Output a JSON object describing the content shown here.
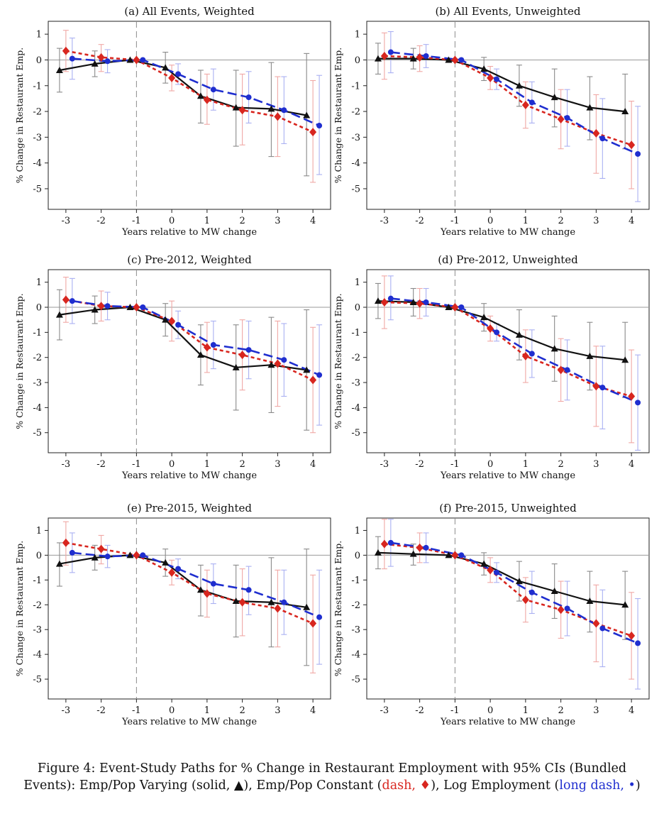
{
  "x_axis_label": "Years relative to MW change",
  "y_axis_label": "% Change in Restaurant Emp.",
  "caption": {
    "part1": "Figure 4: Event-Study Paths for % Change in Restaurant Employment with 95% CIs (Bundled Events): Emp/Pop Varying (solid, ",
    "tri": "▲",
    "part2": "), Emp/Pop Constant (",
    "red_text": "dash, ",
    "diamond": "♦",
    "part3": "), Log Employment (",
    "blue_text": "long dash, ",
    "dot": "•",
    "part4": ")"
  },
  "colors": {
    "solid": "#111111",
    "dash": "#d8261f",
    "longdash": "#1f2ecf",
    "ci_red": "#f0a8a5",
    "ci_blue": "#aab0f2",
    "ci_black": "#8a8a8a"
  },
  "chart_data": [
    {
      "type": "line",
      "title": "(a) All Events, Weighted",
      "x": [
        -3,
        -2,
        -1,
        0,
        1,
        2,
        3,
        4
      ],
      "xlabel": "Years relative to MW change",
      "ylabel": "% Change in Restaurant Emp.",
      "xlim": [
        -3.5,
        4.5
      ],
      "ylim": [
        -5.8,
        1.5
      ],
      "yticks": [
        1,
        0,
        -1,
        -2,
        -3,
        -4,
        -5
      ],
      "series": [
        {
          "style": "solid",
          "marker": "triangle",
          "values": [
            -0.4,
            -0.15,
            0,
            -0.3,
            -1.4,
            -1.85,
            -1.9,
            -2.15
          ],
          "ci_low": [
            -1.25,
            -0.65,
            0,
            -0.9,
            -2.45,
            -3.35,
            -3.75,
            -4.5
          ],
          "ci_high": [
            0.45,
            0.35,
            0,
            0.3,
            -0.4,
            -0.4,
            -0.1,
            0.25
          ]
        },
        {
          "style": "dash",
          "marker": "diamond",
          "values": [
            0.35,
            0.1,
            0,
            -0.7,
            -1.55,
            -1.95,
            -2.2,
            -2.8
          ],
          "ci_low": [
            -0.45,
            -0.45,
            0,
            -1.2,
            -2.5,
            -3.3,
            -3.75,
            -4.75
          ],
          "ci_high": [
            1.15,
            0.6,
            0,
            -0.2,
            -0.55,
            -0.55,
            -0.65,
            -0.8
          ]
        },
        {
          "style": "longdash",
          "marker": "circle",
          "values": [
            0.05,
            -0.05,
            0,
            -0.55,
            -1.15,
            -1.45,
            -1.95,
            -2.55
          ],
          "ci_low": [
            -0.75,
            -0.5,
            0,
            -0.95,
            -1.95,
            -2.45,
            -3.25,
            -4.45
          ],
          "ci_high": [
            0.85,
            0.4,
            0,
            -0.15,
            -0.35,
            -0.45,
            -0.65,
            -0.6
          ]
        }
      ]
    },
    {
      "type": "line",
      "title": "(b) All Events, Unweighted",
      "x": [
        -3,
        -2,
        -1,
        0,
        1,
        2,
        3,
        4
      ],
      "xlabel": "Years relative to MW change",
      "ylabel": "% Change in Restaurant Emp.",
      "xlim": [
        -3.5,
        4.5
      ],
      "ylim": [
        -5.8,
        1.5
      ],
      "yticks": [
        1,
        0,
        -1,
        -2,
        -3,
        -4,
        -5
      ],
      "series": [
        {
          "style": "solid",
          "marker": "triangle",
          "values": [
            0.05,
            0.05,
            0,
            -0.35,
            -1.0,
            -1.45,
            -1.85,
            -2.0
          ],
          "ci_low": [
            -0.55,
            -0.35,
            0,
            -0.8,
            -1.8,
            -2.6,
            -3.1,
            -3.45
          ],
          "ci_high": [
            0.65,
            0.45,
            0,
            0.1,
            -0.2,
            -0.35,
            -0.65,
            -0.55
          ]
        },
        {
          "style": "dash",
          "marker": "diamond",
          "values": [
            0.15,
            0.1,
            0,
            -0.7,
            -1.75,
            -2.3,
            -2.85,
            -3.3
          ],
          "ci_low": [
            -0.75,
            -0.45,
            0,
            -1.15,
            -2.65,
            -3.45,
            -4.4,
            -5.0
          ],
          "ci_high": [
            1.05,
            0.55,
            0,
            -0.25,
            -0.85,
            -1.15,
            -1.35,
            -1.6
          ]
        },
        {
          "style": "longdash",
          "marker": "circle",
          "values": [
            0.3,
            0.15,
            0,
            -0.75,
            -1.65,
            -2.25,
            -3.05,
            -3.65
          ],
          "ci_low": [
            -0.5,
            -0.3,
            0,
            -1.15,
            -2.45,
            -3.35,
            -4.6,
            -5.5
          ],
          "ci_high": [
            1.1,
            0.6,
            0,
            -0.35,
            -0.85,
            -1.15,
            -1.5,
            -1.8
          ]
        }
      ]
    },
    {
      "type": "line",
      "title": "(c) Pre-2012, Weighted",
      "x": [
        -3,
        -2,
        -1,
        0,
        1,
        2,
        3,
        4
      ],
      "xlabel": "Years relative to MW change",
      "ylabel": "% Change in Restaurant Emp.",
      "xlim": [
        -3.5,
        4.5
      ],
      "ylim": [
        -5.8,
        1.5
      ],
      "yticks": [
        1,
        0,
        -1,
        -2,
        -3,
        -4,
        -5
      ],
      "series": [
        {
          "style": "solid",
          "marker": "triangle",
          "values": [
            -0.3,
            -0.1,
            0,
            -0.5,
            -1.9,
            -2.4,
            -2.3,
            -2.5
          ],
          "ci_low": [
            -1.3,
            -0.65,
            0,
            -1.15,
            -3.1,
            -4.1,
            -4.2,
            -4.9
          ],
          "ci_high": [
            0.7,
            0.45,
            0,
            0.15,
            -0.7,
            -0.7,
            -0.4,
            -0.1
          ]
        },
        {
          "style": "dash",
          "marker": "diamond",
          "values": [
            0.3,
            0.05,
            0,
            -0.55,
            -1.6,
            -1.9,
            -2.25,
            -2.9
          ],
          "ci_low": [
            -0.6,
            -0.55,
            0,
            -1.35,
            -2.6,
            -3.3,
            -3.95,
            -5.0
          ],
          "ci_high": [
            1.2,
            0.65,
            0,
            0.25,
            -0.6,
            -0.5,
            -0.55,
            -0.8
          ]
        },
        {
          "style": "longdash",
          "marker": "circle",
          "values": [
            0.25,
            0.05,
            0,
            -0.7,
            -1.5,
            -1.7,
            -2.1,
            -2.7
          ],
          "ci_low": [
            -0.65,
            -0.5,
            0,
            -1.25,
            -2.45,
            -2.85,
            -3.55,
            -4.7
          ],
          "ci_high": [
            1.15,
            0.6,
            0,
            -0.15,
            -0.55,
            -0.55,
            -0.65,
            -0.7
          ]
        }
      ]
    },
    {
      "type": "line",
      "title": "(d) Pre-2012, Unweighted",
      "x": [
        -3,
        -2,
        -1,
        0,
        1,
        2,
        3,
        4
      ],
      "xlabel": "Years relative to MW change",
      "ylabel": "% Change in Restaurant Emp.",
      "xlim": [
        -3.5,
        4.5
      ],
      "ylim": [
        -5.8,
        1.5
      ],
      "yticks": [
        1,
        0,
        -1,
        -2,
        -3,
        -4,
        -5
      ],
      "series": [
        {
          "style": "solid",
          "marker": "triangle",
          "values": [
            0.25,
            0.2,
            0,
            -0.4,
            -1.1,
            -1.65,
            -1.95,
            -2.1
          ],
          "ci_low": [
            -0.45,
            -0.35,
            0,
            -0.95,
            -2.1,
            -2.95,
            -3.3,
            -3.6
          ],
          "ci_high": [
            0.95,
            0.75,
            0,
            0.15,
            -0.1,
            -0.35,
            -0.6,
            -0.6
          ]
        },
        {
          "style": "dash",
          "marker": "diamond",
          "values": [
            0.2,
            0.15,
            0,
            -0.85,
            -1.95,
            -2.5,
            -3.15,
            -3.55
          ],
          "ci_low": [
            -0.85,
            -0.45,
            0,
            -1.35,
            -3.0,
            -3.75,
            -4.75,
            -5.4
          ],
          "ci_high": [
            1.25,
            0.75,
            0,
            -0.35,
            -0.9,
            -1.25,
            -1.55,
            -1.7
          ]
        },
        {
          "style": "longdash",
          "marker": "circle",
          "values": [
            0.35,
            0.2,
            0,
            -1.0,
            -1.85,
            -2.5,
            -3.2,
            -3.8
          ],
          "ci_low": [
            -0.5,
            -0.35,
            0,
            -1.35,
            -2.8,
            -3.7,
            -4.85,
            -5.7
          ],
          "ci_high": [
            1.25,
            0.75,
            0,
            -0.65,
            -0.9,
            -1.3,
            -1.55,
            -1.9
          ]
        }
      ]
    },
    {
      "type": "line",
      "title": "(e) Pre-2015, Weighted",
      "x": [
        -3,
        -2,
        -1,
        0,
        1,
        2,
        3,
        4
      ],
      "xlabel": "Years relative to MW change",
      "ylabel": "% Change in Restaurant Emp.",
      "xlim": [
        -3.5,
        4.5
      ],
      "ylim": [
        -5.8,
        1.5
      ],
      "yticks": [
        1,
        0,
        -1,
        -2,
        -3,
        -4,
        -5
      ],
      "series": [
        {
          "style": "solid",
          "marker": "triangle",
          "values": [
            -0.35,
            -0.1,
            0,
            -0.3,
            -1.4,
            -1.85,
            -1.9,
            -2.1
          ],
          "ci_low": [
            -1.25,
            -0.6,
            0,
            -0.85,
            -2.45,
            -3.3,
            -3.7,
            -4.45
          ],
          "ci_high": [
            0.5,
            0.4,
            0,
            0.25,
            -0.4,
            -0.4,
            -0.1,
            0.25
          ]
        },
        {
          "style": "dash",
          "marker": "diamond",
          "values": [
            0.5,
            0.25,
            0,
            -0.7,
            -1.55,
            -1.9,
            -2.15,
            -2.75
          ],
          "ci_low": [
            -0.4,
            -0.35,
            0,
            -1.2,
            -2.5,
            -3.25,
            -3.7,
            -4.75
          ],
          "ci_high": [
            1.35,
            0.8,
            0,
            -0.2,
            -0.6,
            -0.55,
            -0.6,
            -0.8
          ]
        },
        {
          "style": "longdash",
          "marker": "circle",
          "values": [
            0.1,
            -0.05,
            0,
            -0.55,
            -1.15,
            -1.4,
            -1.9,
            -2.5
          ],
          "ci_low": [
            -0.7,
            -0.5,
            0,
            -0.95,
            -1.95,
            -2.4,
            -3.2,
            -4.4
          ],
          "ci_high": [
            0.9,
            0.4,
            0,
            -0.15,
            -0.35,
            -0.45,
            -0.6,
            -0.6
          ]
        }
      ]
    },
    {
      "type": "line",
      "title": "(f) Pre-2015, Unweighted",
      "x": [
        -3,
        -2,
        -1,
        0,
        1,
        2,
        3,
        4
      ],
      "xlabel": "Years relative to MW change",
      "ylabel": "% Change in Restaurant Emp.",
      "xlim": [
        -3.5,
        4.5
      ],
      "ylim": [
        -5.8,
        1.5
      ],
      "yticks": [
        1,
        0,
        -1,
        -2,
        -3,
        -4,
        -5
      ],
      "series": [
        {
          "style": "solid",
          "marker": "triangle",
          "values": [
            0.1,
            0.05,
            0,
            -0.35,
            -1.05,
            -1.45,
            -1.85,
            -2.0
          ],
          "ci_low": [
            -0.55,
            -0.4,
            0,
            -0.8,
            -1.85,
            -2.55,
            -3.1,
            -3.4
          ],
          "ci_high": [
            0.75,
            0.45,
            0,
            0.1,
            -0.25,
            -0.35,
            -0.65,
            -0.65
          ]
        },
        {
          "style": "dash",
          "marker": "diamond",
          "values": [
            0.45,
            0.3,
            0,
            -0.6,
            -1.8,
            -2.2,
            -2.75,
            -3.25
          ],
          "ci_low": [
            -0.55,
            -0.3,
            0,
            -1.1,
            -2.7,
            -3.35,
            -4.3,
            -5.0
          ],
          "ci_high": [
            1.45,
            0.9,
            0,
            -0.1,
            -0.9,
            -1.05,
            -1.2,
            -1.5
          ]
        },
        {
          "style": "longdash",
          "marker": "circle",
          "values": [
            0.5,
            0.3,
            0,
            -0.7,
            -1.5,
            -2.15,
            -2.95,
            -3.55
          ],
          "ci_low": [
            -0.45,
            -0.3,
            0,
            -1.1,
            -2.35,
            -3.25,
            -4.5,
            -5.4
          ],
          "ci_high": [
            1.45,
            0.9,
            0,
            -0.3,
            -0.65,
            -1.05,
            -1.4,
            -1.75
          ]
        }
      ]
    }
  ]
}
